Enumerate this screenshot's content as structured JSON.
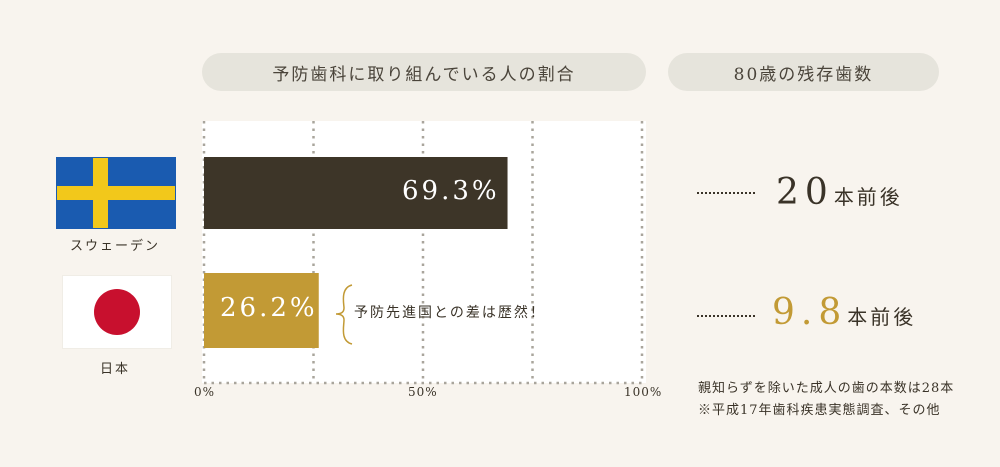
{
  "headers": {
    "left": "予防歯科に取り組んでいる人の割合",
    "right": "80歳の残存歯数"
  },
  "countries": {
    "sweden": "スウェーデン",
    "japan": "日本"
  },
  "chart_data": {
    "type": "bar",
    "orientation": "horizontal",
    "categories": [
      "スウェーデン",
      "日本"
    ],
    "values": [
      69.3,
      26.2
    ],
    "value_labels": [
      "69.3%",
      "26.2%"
    ],
    "colors": [
      "#3d3528",
      "#c29a35"
    ],
    "xlim": [
      0,
      100
    ],
    "x_ticks": [
      "0%",
      "50%",
      "100%"
    ],
    "grid": true
  },
  "annotation": "予防先進国との差は歴然！",
  "teeth": {
    "sweden": {
      "number": "20",
      "suffix": "本前後"
    },
    "japan": {
      "number": "9.8",
      "suffix": "本前後"
    }
  },
  "footnotes": [
    "親知らずを除いた成人の歯の本数は28本",
    "※平成17年歯科疾患実態調査、その他"
  ]
}
